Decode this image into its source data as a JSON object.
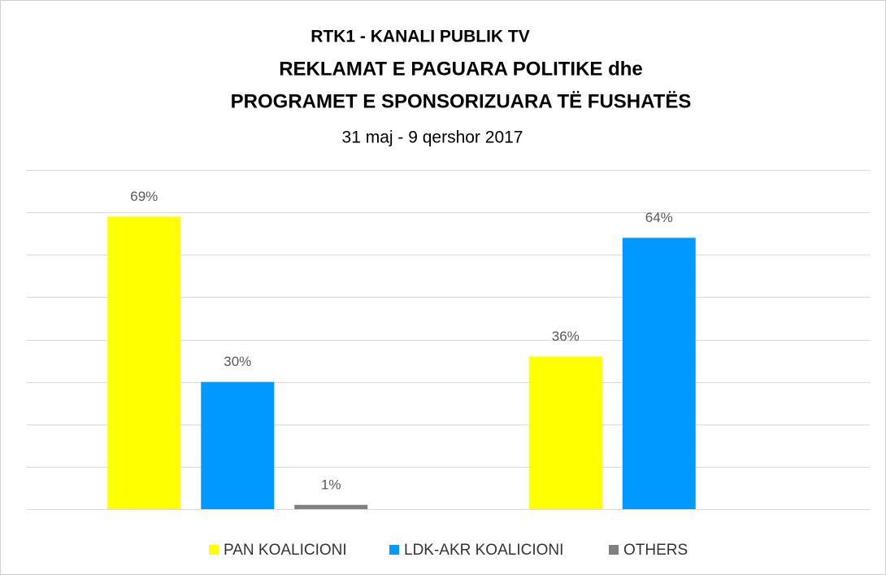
{
  "chart_data": {
    "type": "bar",
    "supertitle": "RTK1 - KANALI PUBLIK TV",
    "title": [
      "REKLAMAT E PAGUARA POLITIKE dhe",
      "PROGRAMET E SPONSORIZUARA TË FUSHATËS"
    ],
    "subtitle": "31 maj - 9 qershor 2017",
    "categories": [
      null,
      null
    ],
    "series": [
      {
        "name": "PAN KOALICIONI",
        "color": "#ffff00",
        "values": [
          69,
          36
        ],
        "value_labels": [
          "69%",
          "36%"
        ]
      },
      {
        "name": "LDK-AKR KOALICIONI",
        "color": "#0099ff",
        "values": [
          30,
          64
        ],
        "value_labels": [
          "30%",
          "64%"
        ]
      },
      {
        "name": "OTHERS",
        "color": "#808080",
        "values": [
          1,
          null
        ],
        "value_labels": [
          "1%",
          null
        ]
      }
    ],
    "ylim": [
      0,
      80
    ],
    "yticks": [
      0,
      10,
      20,
      30,
      40,
      50,
      60,
      70,
      80
    ],
    "grid": true,
    "legend": "bottom"
  }
}
